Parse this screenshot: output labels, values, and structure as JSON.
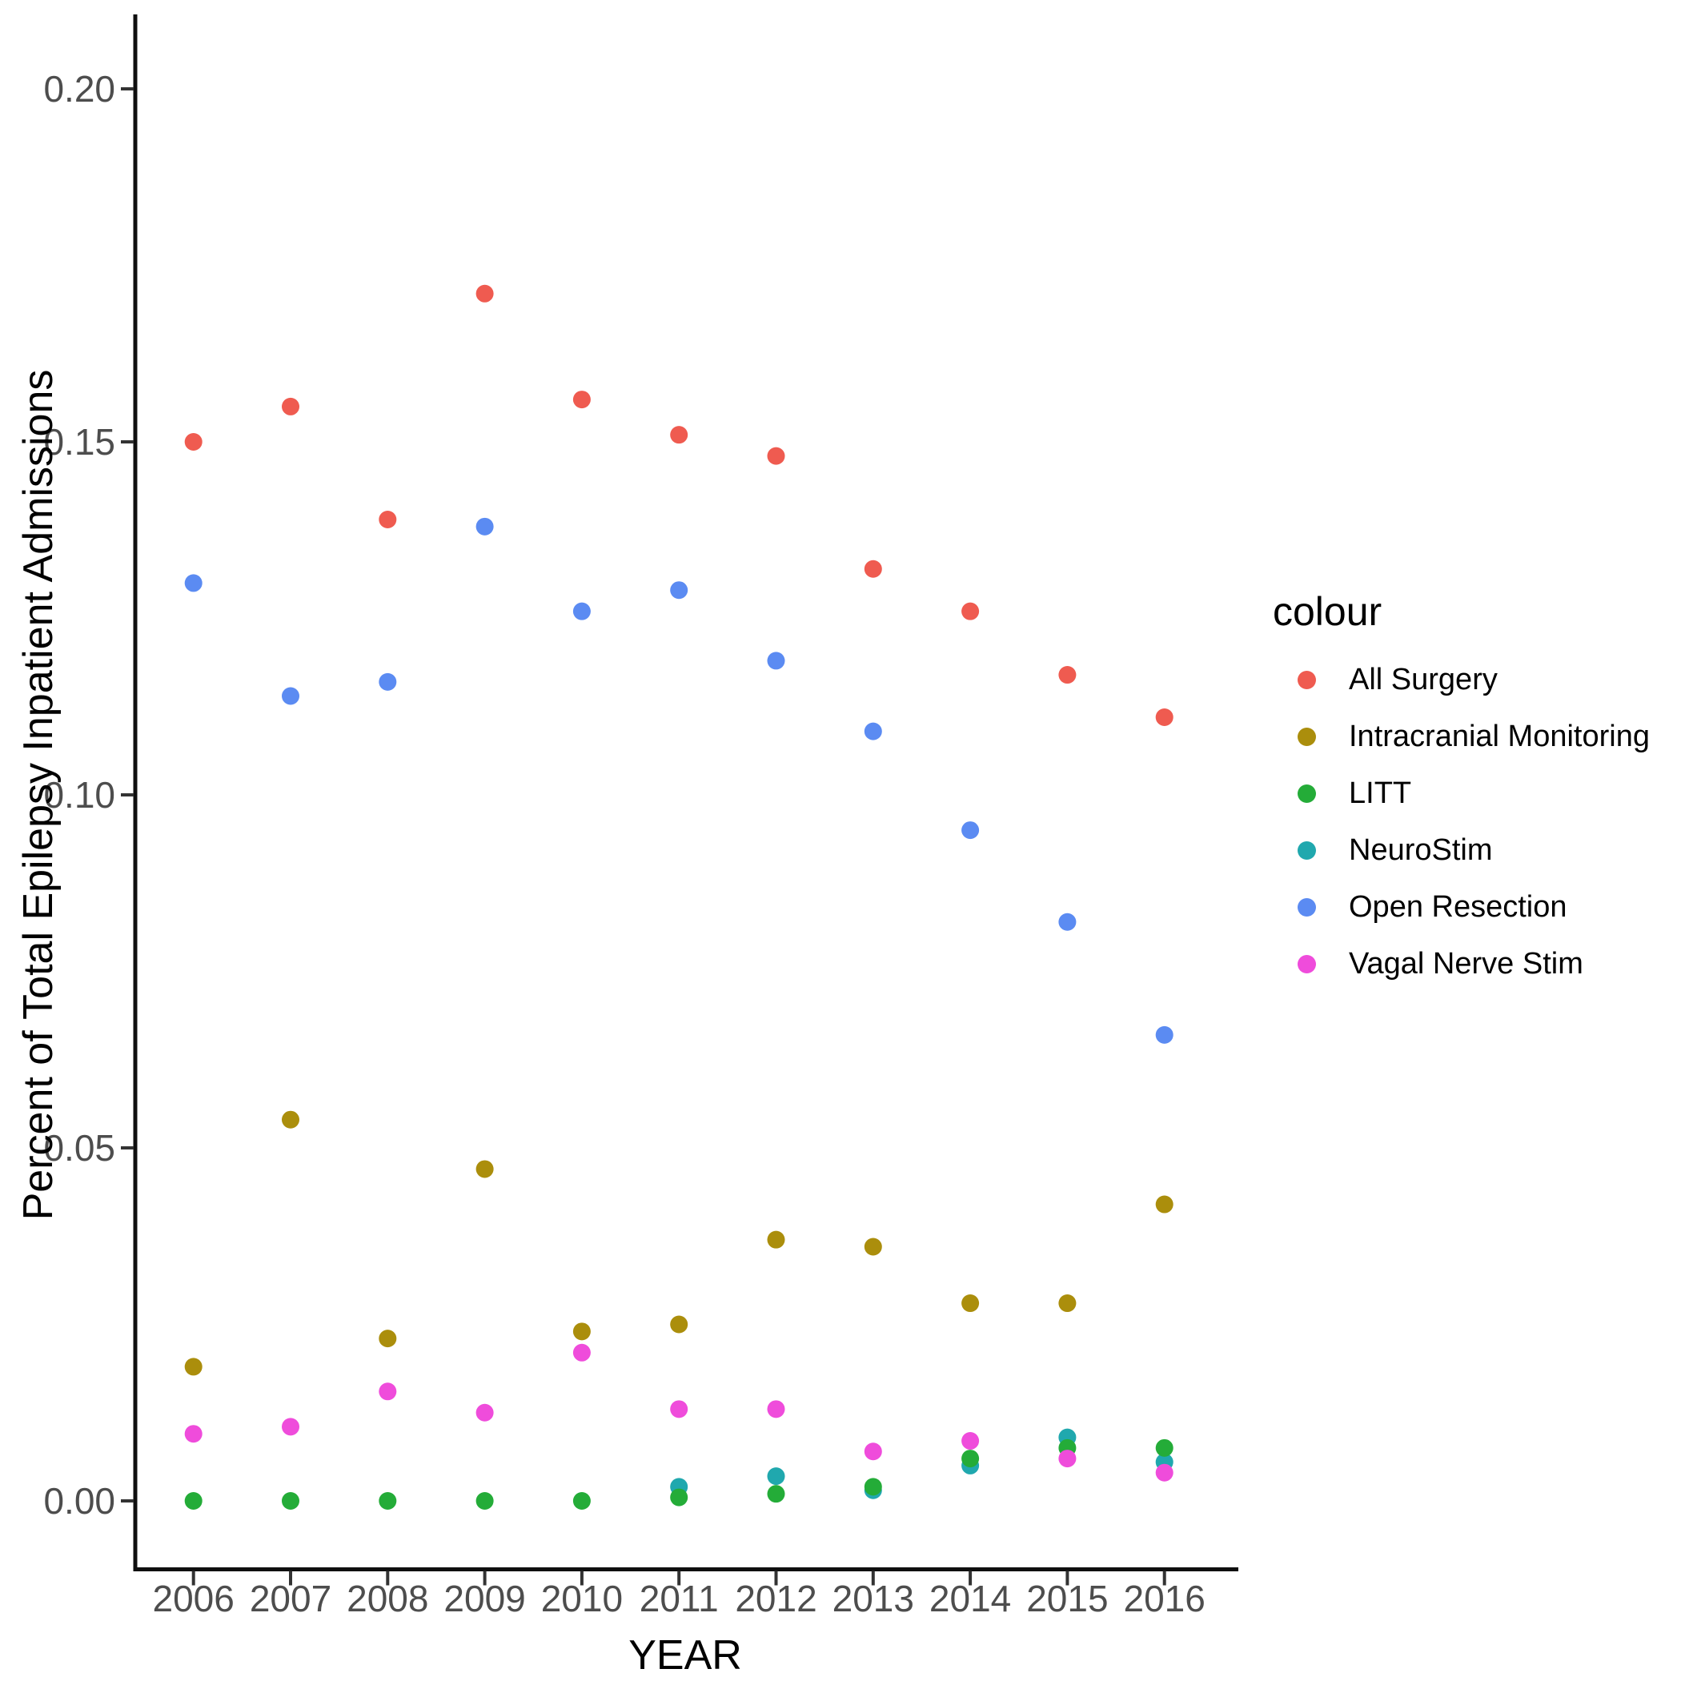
{
  "figure": {
    "y_axis_title": "Percent of Total Epilepsy Inpatient Admissions",
    "x_axis_title": "YEAR",
    "legend_title": "colour"
  },
  "chart_data": {
    "type": "scatter",
    "title": "",
    "xlabel": "YEAR",
    "ylabel": "Percent of Total Epilepsy Inpatient Admissions",
    "legend_title": "colour",
    "legend_position": "right",
    "grid": false,
    "background_color": "#FFFFFF",
    "axis_color": "#000000",
    "tick_label_color": "#4D4D4D",
    "x": [
      2006,
      2007,
      2008,
      2009,
      2010,
      2011,
      2012,
      2013,
      2014,
      2015,
      2016
    ],
    "x_tick_labels": [
      "2006",
      "2007",
      "2008",
      "2009",
      "2010",
      "2011",
      "2012",
      "2013",
      "2014",
      "2015",
      "2016"
    ],
    "xlim": [
      2005.4,
      2016.7
    ],
    "y_ticks": [
      0.0,
      0.05,
      0.1,
      0.15,
      0.2
    ],
    "y_tick_labels": [
      "0.00",
      "0.05",
      "0.10",
      "0.15",
      "0.20"
    ],
    "ylim": [
      -0.011,
      0.211
    ],
    "series": [
      {
        "name": "All Surgery",
        "color": "#EF5B50",
        "values": [
          0.15,
          0.155,
          0.139,
          0.171,
          0.156,
          0.151,
          0.148,
          0.132,
          0.126,
          0.117,
          0.111
        ]
      },
      {
        "name": "Intracranial Monitoring",
        "color": "#AB8E0C",
        "values": [
          0.019,
          0.054,
          0.023,
          0.047,
          0.024,
          0.025,
          0.037,
          0.036,
          0.028,
          0.028,
          0.042
        ]
      },
      {
        "name": "LITT",
        "color": "#24AC38",
        "values": [
          0.0,
          0.0,
          0.0,
          0.0,
          0.0,
          0.0005,
          0.001,
          0.002,
          0.006,
          0.0075,
          0.0075
        ]
      },
      {
        "name": "NeuroStim",
        "color": "#20A8AE",
        "values": [
          null,
          null,
          null,
          null,
          null,
          0.002,
          0.0035,
          0.0015,
          0.005,
          0.009,
          0.0055
        ]
      },
      {
        "name": "Open Resection",
        "color": "#5B8BF2",
        "values": [
          0.13,
          0.114,
          0.116,
          0.138,
          0.126,
          0.129,
          0.119,
          0.109,
          0.095,
          0.082,
          0.066
        ]
      },
      {
        "name": "Vagal Nerve Stim",
        "color": "#EF4CDB",
        "values": [
          0.0095,
          0.0105,
          0.0155,
          0.0125,
          0.021,
          0.013,
          0.013,
          0.007,
          0.0085,
          0.006,
          0.004
        ]
      }
    ]
  }
}
